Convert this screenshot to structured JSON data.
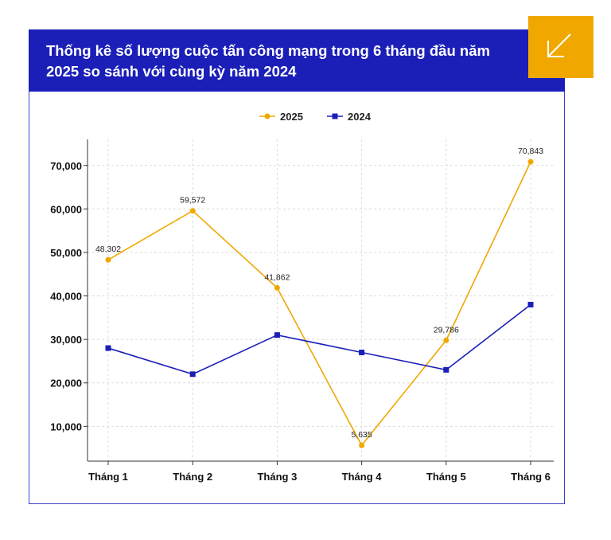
{
  "title": "Thống kê số lượng cuộc tấn công mạng trong 6 tháng đầu năm 2025 so sánh với cùng kỳ năm 2024",
  "badge_icon": "arrow-down-left-icon",
  "colors": {
    "header": "#1b1fb8",
    "badge": "#f0a800",
    "series_2025": "#f0a800",
    "series_2024": "#1b1fb8"
  },
  "chart_data": {
    "type": "line",
    "categories": [
      "Tháng 1",
      "Tháng 2",
      "Tháng 3",
      "Tháng 4",
      "Tháng 5",
      "Tháng 6"
    ],
    "series": [
      {
        "name": "2025",
        "values": [
          48302,
          59572,
          41862,
          5635,
          29786,
          70843
        ],
        "labels": [
          "48,302",
          "59,572",
          "41,862",
          "5,635",
          "29,786",
          "70,843"
        ],
        "marker": "circle"
      },
      {
        "name": "2024",
        "values": [
          28000,
          22000,
          31000,
          27000,
          23000,
          38000
        ],
        "marker": "square"
      }
    ],
    "y_ticks": [
      10000,
      20000,
      30000,
      40000,
      50000,
      60000,
      70000
    ],
    "y_tick_labels": [
      "10,000",
      "20,000",
      "30,000",
      "40,000",
      "50,000",
      "60,000",
      "70,000"
    ],
    "ylim": [
      2000,
      76000
    ],
    "grid": true,
    "legend_position": "top-center"
  }
}
